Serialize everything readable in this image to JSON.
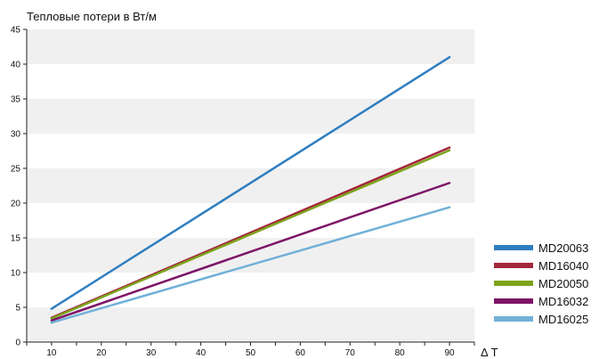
{
  "chart_data": {
    "type": "line",
    "title": "Тепловые потери в Вт/м",
    "xlabel": "Δ T",
    "ylabel": "",
    "x_ticks": [
      10,
      20,
      30,
      40,
      50,
      60,
      70,
      80,
      90
    ],
    "y_ticks": [
      0,
      5,
      10,
      15,
      20,
      25,
      30,
      35,
      40,
      45
    ],
    "xlim": [
      5,
      95
    ],
    "ylim": [
      0,
      45
    ],
    "grid": "alternating horizontal bands",
    "legend_position": "right",
    "series": [
      {
        "name": "MD20063",
        "color": "#2f7ec0",
        "x": [
          10,
          90
        ],
        "y": [
          4.8,
          41.0
        ]
      },
      {
        "name": "MD16040",
        "color": "#a3263a",
        "x": [
          10,
          90
        ],
        "y": [
          3.5,
          28.0
        ]
      },
      {
        "name": "MD20050",
        "color": "#7da31b",
        "x": [
          10,
          90
        ],
        "y": [
          3.4,
          27.6
        ]
      },
      {
        "name": "MD16032",
        "color": "#7d1467",
        "x": [
          10,
          90
        ],
        "y": [
          3.1,
          22.9
        ]
      },
      {
        "name": "MD16025",
        "color": "#70b0d8",
        "x": [
          10,
          90
        ],
        "y": [
          2.8,
          19.4
        ]
      }
    ]
  }
}
